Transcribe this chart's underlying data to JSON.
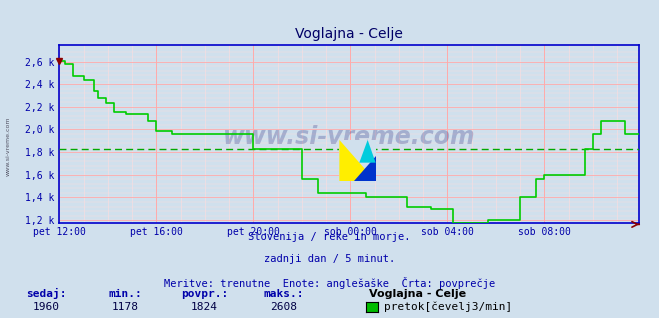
{
  "title": "Voglajna - Celje",
  "bg_color": "#d0e0ed",
  "plot_bg_color": "#d0e0ed",
  "line_color": "#00cc00",
  "avg_line_color": "#00aa00",
  "avg_value": 1824,
  "ymin": 1178,
  "ymax": 2608,
  "ylim_min": 1178,
  "ylim_max": 2750,
  "yticks": [
    1200,
    1400,
    1600,
    1800,
    2000,
    2200,
    2400,
    2600
  ],
  "ytick_labels": [
    "1,2 k",
    "1,4 k",
    "1,6 k",
    "1,8 k",
    "2,0 k",
    "2,2 k",
    "2,4 k",
    "2,6 k"
  ],
  "grid_color_major": "#ffaaaa",
  "grid_color_minor": "#ffdddd",
  "xlabel_color": "#0000aa",
  "ylabel_color": "#0000aa",
  "axis_color": "#0000cc",
  "bottom_text1": "Slovenija / reke in morje.",
  "bottom_text2": "zadnji dan / 5 minut.",
  "bottom_text3": "Meritve: trenutne  Enote: anglešaške  Črta: povprečje",
  "footer_label1": "sedaj:",
  "footer_val1": "1960",
  "footer_label2": "min.:",
  "footer_val2": "1178",
  "footer_label3": "povpr.:",
  "footer_val3": "1824",
  "footer_label4": "maks.:",
  "footer_val4": "2608",
  "footer_station": "Voglajna - Celje",
  "footer_legend_label": "pretok[čevelj3/min]",
  "watermark": "www.si-vreme.com",
  "xtick_labels": [
    "pet 12:00",
    "pet 16:00",
    "pet 20:00",
    "sob 00:00",
    "sob 04:00",
    "sob 08:00"
  ],
  "n_points": 288,
  "xtick_positions": [
    0,
    48,
    96,
    144,
    192,
    240
  ],
  "data_y": [
    2608,
    2608,
    2608,
    2576,
    2576,
    2576,
    2576,
    2472,
    2472,
    2472,
    2472,
    2472,
    2440,
    2440,
    2440,
    2440,
    2440,
    2344,
    2344,
    2280,
    2280,
    2280,
    2280,
    2232,
    2232,
    2232,
    2232,
    2152,
    2152,
    2152,
    2152,
    2152,
    2152,
    2136,
    2136,
    2136,
    2136,
    2136,
    2136,
    2136,
    2136,
    2136,
    2136,
    2136,
    2072,
    2072,
    2072,
    2072,
    1984,
    1984,
    1984,
    1984,
    1984,
    1984,
    1984,
    1984,
    1960,
    1960,
    1960,
    1960,
    1960,
    1960,
    1960,
    1960,
    1960,
    1960,
    1960,
    1960,
    1960,
    1960,
    1960,
    1960,
    1960,
    1960,
    1960,
    1960,
    1960,
    1960,
    1960,
    1960,
    1960,
    1960,
    1960,
    1960,
    1960,
    1960,
    1960,
    1960,
    1960,
    1960,
    1960,
    1960,
    1960,
    1960,
    1960,
    1960,
    1824,
    1824,
    1824,
    1824,
    1824,
    1824,
    1824,
    1824,
    1824,
    1824,
    1824,
    1824,
    1824,
    1824,
    1824,
    1824,
    1824,
    1824,
    1824,
    1824,
    1824,
    1824,
    1824,
    1824,
    1560,
    1560,
    1560,
    1560,
    1560,
    1560,
    1560,
    1560,
    1440,
    1440,
    1440,
    1440,
    1440,
    1440,
    1440,
    1440,
    1440,
    1440,
    1440,
    1440,
    1440,
    1440,
    1440,
    1440,
    1440,
    1440,
    1440,
    1440,
    1440,
    1440,
    1440,
    1440,
    1400,
    1400,
    1400,
    1400,
    1400,
    1400,
    1400,
    1400,
    1400,
    1400,
    1400,
    1400,
    1400,
    1400,
    1400,
    1400,
    1400,
    1400,
    1400,
    1400,
    1320,
    1320,
    1320,
    1320,
    1320,
    1320,
    1320,
    1320,
    1320,
    1320,
    1320,
    1320,
    1300,
    1300,
    1300,
    1300,
    1300,
    1300,
    1300,
    1300,
    1300,
    1300,
    1300,
    1178,
    1178,
    1178,
    1178,
    1178,
    1178,
    1178,
    1178,
    1178,
    1178,
    1178,
    1178,
    1178,
    1178,
    1178,
    1178,
    1178,
    1200,
    1200,
    1200,
    1200,
    1200,
    1200,
    1200,
    1200,
    1200,
    1200,
    1200,
    1200,
    1200,
    1200,
    1200,
    1200,
    1400,
    1400,
    1400,
    1400,
    1400,
    1400,
    1400,
    1400,
    1560,
    1560,
    1560,
    1560,
    1600,
    1600,
    1600,
    1600,
    1600,
    1600,
    1600,
    1600,
    1600,
    1600,
    1600,
    1600,
    1600,
    1600,
    1600,
    1600,
    1600,
    1600,
    1600,
    1600,
    1824,
    1824,
    1824,
    1824,
    1960,
    1960,
    1960,
    1960,
    2072,
    2072,
    2072,
    2072,
    2072,
    2072,
    2072,
    2072,
    2072,
    2072,
    2072,
    2072,
    1960,
    1960,
    1960,
    1960,
    1960,
    1960,
    1960,
    1960
  ]
}
